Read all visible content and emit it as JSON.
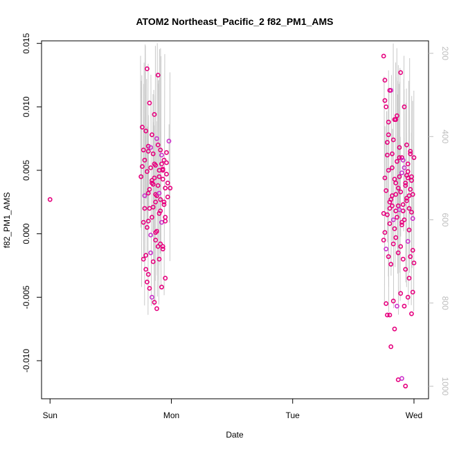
{
  "chart_data": {
    "type": "scatter",
    "title": "ATOM2 Northeast_Pacific_2 f82_PM1_AMS",
    "xlabel": "Date",
    "ylabel": "f82_PM1_AMS",
    "x_ticks": [
      "Sun",
      "Mon",
      "Tue",
      "Wed"
    ],
    "x_range_days": [
      -0.07,
      3.12
    ],
    "ylim": [
      -0.013,
      0.0152
    ],
    "y_ticks": [
      -0.01,
      -0.005,
      0.0,
      0.005,
      0.01,
      0.015
    ],
    "y_tick_labels": [
      "-0.010",
      "-0.005",
      "0.000",
      "0.005",
      "0.010",
      "0.015"
    ],
    "right_axis": {
      "label": "",
      "ylim": [
        1030,
        170
      ],
      "ticks": [
        200,
        400,
        600,
        800,
        1000
      ],
      "tick_labels": [
        "200",
        "400",
        "600",
        "800",
        "1000"
      ],
      "color": "#bdbdbd"
    },
    "grid": false,
    "legend": "none",
    "point_color": "#e6007e",
    "point_color_alt": "#cc33cc",
    "line_color": "#c8c8c8",
    "series": [
      {
        "x": [
          0.0,
          0.75,
          0.76,
          0.77,
          0.78,
          0.79,
          0.8,
          0.8,
          0.81,
          0.81,
          0.82,
          0.82,
          0.83,
          0.83,
          0.84,
          0.84,
          0.85,
          0.85,
          0.86,
          0.86,
          0.87,
          0.87,
          0.88,
          0.88,
          0.89,
          0.89,
          0.9,
          0.9,
          0.91,
          0.91,
          0.92,
          0.92,
          0.93,
          0.93,
          0.94,
          0.94,
          0.95,
          0.95,
          0.96,
          0.97,
          0.98,
          0.99,
          0.76,
          0.77,
          0.78,
          0.79,
          0.8,
          0.81,
          0.82,
          0.83,
          0.84,
          0.85,
          0.86,
          0.87,
          0.88,
          0.89,
          0.9,
          0.91,
          0.92,
          0.93,
          0.94,
          0.95,
          0.96,
          0.97,
          0.77,
          0.79,
          0.81,
          0.83,
          0.85,
          0.87,
          0.89,
          0.91,
          0.93,
          0.95,
          0.8,
          0.82,
          0.84,
          0.86,
          0.88,
          0.9,
          0.92,
          0.78,
          0.81,
          0.84,
          0.87,
          0.9,
          0.93,
          0.96,
          2.75,
          2.76,
          2.77,
          2.78,
          2.79,
          2.8,
          2.81,
          2.82,
          2.83,
          2.84,
          2.85,
          2.86,
          2.87,
          2.88,
          2.89,
          2.9,
          2.91,
          2.92,
          2.93,
          2.94,
          2.95,
          2.96,
          2.97,
          2.98,
          2.99,
          3.0,
          2.76,
          2.77,
          2.78,
          2.79,
          2.8,
          2.81,
          2.82,
          2.83,
          2.84,
          2.85,
          2.86,
          2.87,
          2.88,
          2.89,
          2.9,
          2.91,
          2.92,
          2.93,
          2.94,
          2.95,
          2.96,
          2.97,
          2.98,
          2.99,
          2.75,
          2.77,
          2.79,
          2.81,
          2.83,
          2.85,
          2.87,
          2.89,
          2.91,
          2.93,
          2.95,
          2.97,
          2.99,
          2.76,
          2.78,
          2.8,
          2.82,
          2.84,
          2.86,
          2.88,
          2.9,
          2.92,
          2.94,
          2.96,
          2.98,
          2.77,
          2.8,
          2.83,
          2.86,
          2.89,
          2.92,
          2.95,
          2.98,
          2.78,
          2.81,
          2.84,
          2.87,
          2.9,
          2.93,
          2.96,
          2.99,
          2.76,
          2.79,
          2.82,
          2.85,
          2.88,
          2.91,
          2.94,
          2.97,
          2.75,
          2.8,
          2.85,
          2.9,
          2.95,
          3.0
        ],
        "y": [
          0.0027,
          0.0045,
          0.0053,
          0.0066,
          0.003,
          0.0081,
          0.0005,
          0.013,
          0.001,
          0.0069,
          0.0035,
          0.0103,
          0.0052,
          -0.0001,
          0.0078,
          0.004,
          0.0063,
          0.0021,
          0.0094,
          0.0044,
          0.0054,
          0.0031,
          0.0075,
          0.0002,
          0.0125,
          0.0038,
          0.005,
          0.0016,
          0.0066,
          0.0027,
          0.0055,
          0.0009,
          0.0043,
          -0.001,
          0.0058,
          0.0023,
          0.0036,
          0.0013,
          0.0064,
          0.004,
          0.0073,
          0.0036,
          0.0084,
          0.0009,
          0.0058,
          -0.0017,
          0.0049,
          0.0032,
          0.002,
          0.0068,
          0.0013,
          0.0039,
          0.0055,
          0.0001,
          0.003,
          0.007,
          0.0045,
          0.0018,
          0.0062,
          0.0051,
          0.0025,
          0.001,
          0.0047,
          0.0029,
          -0.002,
          -0.0028,
          -0.0032,
          -0.0015,
          -0.0022,
          -0.0005,
          -0.001,
          -0.0008,
          -0.0012,
          -0.0035,
          -0.0038,
          -0.0043,
          -0.005,
          -0.0054,
          -0.0059,
          -0.002,
          -0.0042,
          0.002,
          0.0065,
          0.0042,
          0.0025,
          0.0032,
          0.005,
          0.0056,
          0.014,
          0.0044,
          0.01,
          0.0062,
          0.0088,
          0.0025,
          0.0113,
          0.003,
          0.0074,
          0.0043,
          0.0018,
          0.0093,
          0.0036,
          0.006,
          0.0127,
          0.0048,
          0.0023,
          0.01,
          0.004,
          0.007,
          0.0055,
          0.003,
          0.0065,
          0.0045,
          0.0012,
          0.006,
          0.0121,
          0.0034,
          0.0072,
          0.005,
          0.0113,
          0.0027,
          0.0063,
          0.0011,
          0.009,
          0.004,
          0.0057,
          0.0022,
          0.0045,
          0.0033,
          0.006,
          0.0018,
          0.0052,
          0.0038,
          0.0028,
          0.0049,
          0.002,
          0.0063,
          0.0042,
          0.0031,
          -0.0005,
          -0.0012,
          -0.0018,
          -0.0024,
          -0.0008,
          -0.0003,
          -0.0015,
          -0.001,
          -0.002,
          -0.0028,
          -0.0006,
          -0.0018,
          -0.0013,
          0.0001,
          0.0015,
          0.0008,
          0.0022,
          0.0004,
          0.0013,
          0.0019,
          0.0007,
          0.0011,
          0.0026,
          0.0003,
          0.0017,
          -0.0055,
          -0.0064,
          -0.0053,
          -0.0057,
          -0.0047,
          -0.0057,
          -0.005,
          -0.0063,
          -0.0064,
          -0.0089,
          -0.0075,
          -0.0115,
          -0.0114,
          -0.012,
          -0.0035,
          -0.0046,
          0.0105,
          0.0078,
          0.0052,
          0.009,
          0.0068,
          0.0058,
          0.0046,
          0.0035,
          0.0016,
          0.002,
          0.0031,
          0.0009,
          0.0044,
          -0.0023
        ]
      }
    ]
  }
}
